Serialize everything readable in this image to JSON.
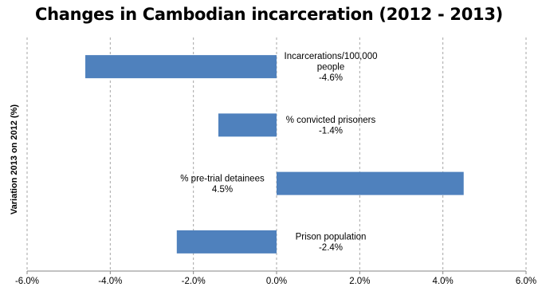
{
  "chart_data": {
    "type": "bar",
    "orientation": "horizontal",
    "title": "Changes in Cambodian incarceration (2012 - 2013)",
    "xlabel": "",
    "ylabel": "Variation 2013 on 2012 (%)",
    "xlim": [
      -6,
      6
    ],
    "xticks": [
      -6,
      -4,
      -2,
      0,
      2,
      4,
      6
    ],
    "xtick_labels": [
      "-6.0%",
      "-4.0%",
      "-2.0%",
      "0.0%",
      "2.0%",
      "4.0%",
      "6.0%"
    ],
    "grid": "vertical dashed",
    "bar_color": "#4F81BD",
    "categories": [
      "Incarcerations/100,000 people",
      "% convicted prisoners",
      "% pre-trial detainees",
      "Prison population"
    ],
    "values": [
      -4.6,
      -1.4,
      4.5,
      -2.4
    ],
    "data_labels": [
      [
        "Incarcerations/100,000",
        "people",
        "-4.6%"
      ],
      [
        "% convicted prisoners",
        "-1.4%"
      ],
      [
        "% pre-trial detainees",
        "4.5%"
      ],
      [
        "Prison population",
        "-2.4%"
      ]
    ]
  }
}
